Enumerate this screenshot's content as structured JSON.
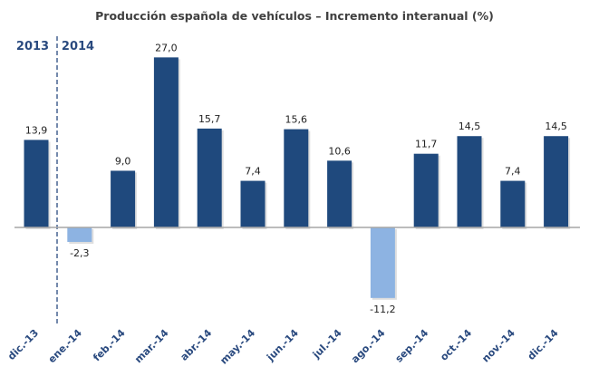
{
  "chart_data": {
    "type": "bar",
    "title": "Producción española de vehículos – Incremento interanual (%)",
    "categories": [
      "dic.-13",
      "ene.-14",
      "feb.-14",
      "mar.-14",
      "abr.-14",
      "may.-14",
      "jun.-14",
      "jul.-14",
      "ago.-14",
      "sep.-14",
      "oct.-14",
      "nov.-14",
      "dic.-14"
    ],
    "values": [
      13.9,
      -2.3,
      9.0,
      27.0,
      15.7,
      7.4,
      15.6,
      10.6,
      -11.2,
      11.7,
      14.5,
      7.4,
      14.5
    ],
    "data_labels": [
      "13,9",
      "-2,3",
      "9,0",
      "27,0",
      "15,7",
      "7,4",
      "15,6",
      "10,6",
      "-11,2",
      "11,7",
      "14,5",
      "7,4",
      "14,5"
    ],
    "year_labels": [
      "2013",
      "2014"
    ],
    "xlabel": "",
    "ylabel": "",
    "grid": false,
    "legend": "none",
    "colors": {
      "positive": "#1f497d",
      "negative": "#8db3e2",
      "axis": "#a6a6a6",
      "divider": "#2a4a7f"
    }
  }
}
